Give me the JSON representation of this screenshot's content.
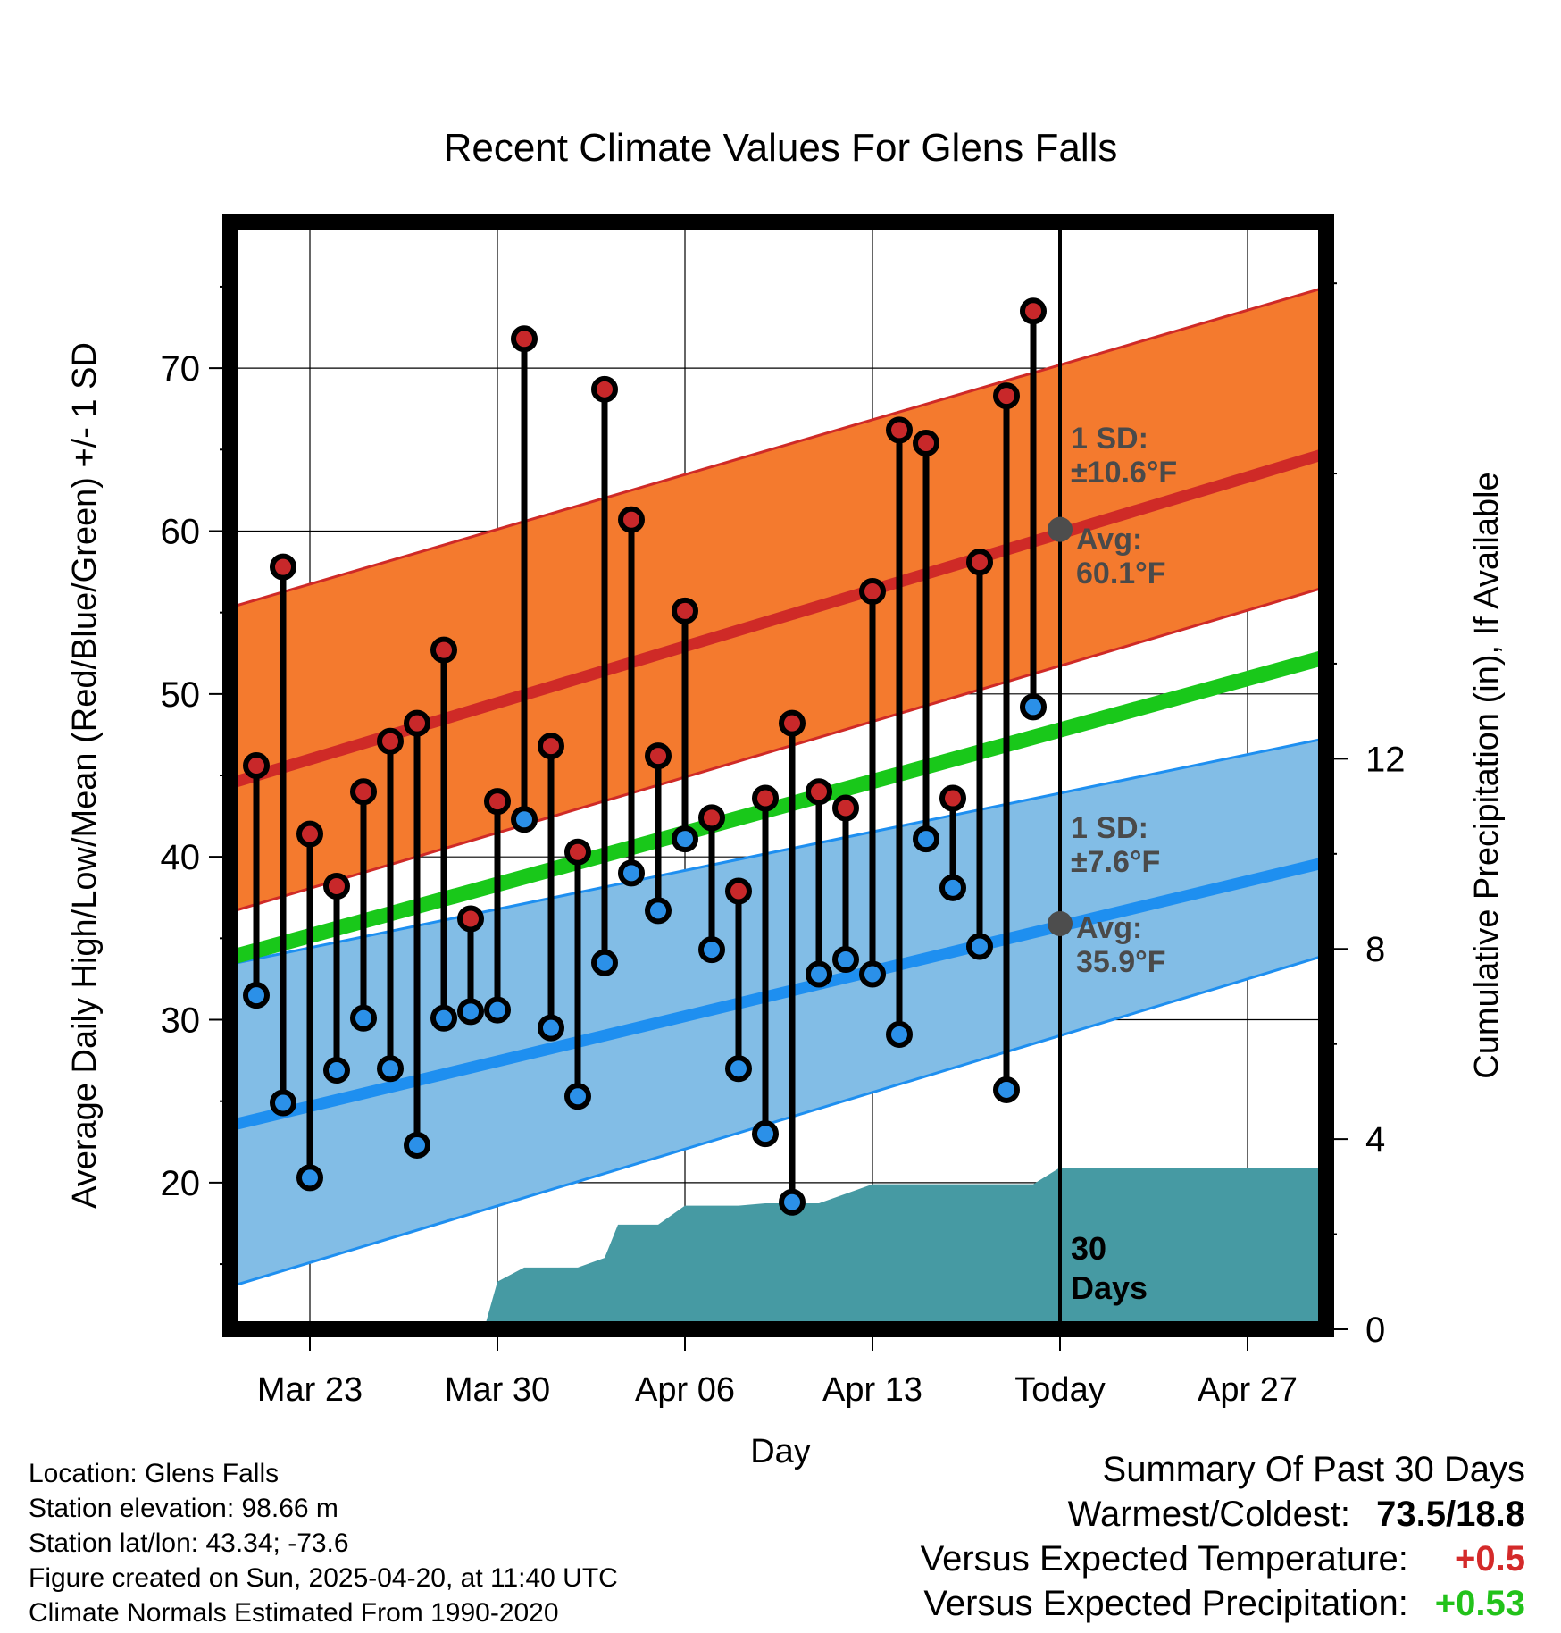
{
  "chart_data": {
    "type": "line",
    "title": "Recent Climate Values For Glens Falls",
    "xlabel": "Day",
    "ylabel": "Average Daily High/Low/Mean (Red/Blue/Green) +/- 1 SD",
    "y2label": "Cumulative Precipitation (in), If Available",
    "xticks": [
      "Mar 23",
      "Mar 30",
      "Apr 06",
      "Apr 13",
      "Today",
      "Apr 27"
    ],
    "xlim_days": [
      -31,
      10
    ],
    "ylim": [
      11,
      79
    ],
    "y_ticks": [
      20,
      30,
      40,
      50,
      60,
      70
    ],
    "y2lim": [
      0,
      23.3
    ],
    "y2_ticks": [
      0,
      4,
      8,
      12
    ],
    "today_marker": "30\nDays",
    "normal_high": {
      "x": [
        -31,
        10
      ],
      "mean": [
        44.5,
        64.8
      ],
      "upper": [
        55.3,
        75.0
      ],
      "lower": [
        36.6,
        56.6
      ],
      "sd_label": "1 SD:",
      "sd_value": "±10.6°F",
      "avg_label": "Avg:",
      "avg_value": "60.1°F",
      "today_avg": 60.1
    },
    "normal_low": {
      "x": [
        -31,
        10
      ],
      "mean": [
        23.5,
        39.7
      ],
      "upper": [
        33.4,
        47.3
      ],
      "lower": [
        13.6,
        34.0
      ],
      "sd_label": "1 SD:",
      "sd_value": "±7.6°F",
      "avg_label": "Avg:",
      "avg_value": "35.9°F",
      "today_avg": 35.9
    },
    "normal_mean": {
      "x": [
        -31,
        10
      ],
      "values": [
        33.8,
        52.3
      ]
    },
    "daily": {
      "day": [
        -30,
        -29,
        -28,
        -27,
        -26,
        -25,
        -24,
        -23,
        -22,
        -21,
        -20,
        -19,
        -18,
        -17,
        -16,
        -15,
        -14,
        -13,
        -12,
        -11,
        -10,
        -9,
        -8,
        -7,
        -6,
        -5,
        -4,
        -3,
        -2,
        -1
      ],
      "high": [
        45.6,
        57.8,
        41.4,
        38.2,
        44.0,
        47.1,
        48.2,
        52.7,
        36.2,
        43.4,
        71.8,
        46.8,
        40.3,
        68.7,
        60.7,
        46.2,
        55.1,
        42.4,
        37.9,
        43.6,
        48.2,
        44.0,
        43.0,
        56.3,
        66.2,
        65.4,
        43.6,
        58.1,
        68.3,
        73.5
      ],
      "low": [
        31.5,
        24.9,
        20.3,
        26.9,
        30.1,
        27.0,
        22.3,
        30.1,
        30.5,
        30.6,
        42.3,
        29.5,
        25.3,
        33.5,
        39.0,
        36.7,
        41.1,
        34.3,
        27.0,
        23.0,
        18.8,
        32.8,
        33.7,
        32.8,
        29.1,
        41.1,
        38.1,
        34.5,
        25.7,
        49.2
      ]
    },
    "precip": {
      "day": [
        -31,
        -27,
        -26,
        -25,
        -24,
        -23,
        -22,
        -21.5,
        -21,
        -20,
        -19,
        -18,
        -17,
        -16.5,
        -16,
        -15,
        -14,
        -13,
        -12,
        -11,
        -10,
        -9,
        -8,
        -7,
        -6,
        -5,
        -4,
        -3,
        -2,
        -1,
        0,
        10
      ],
      "cum": [
        0,
        0,
        0,
        0,
        0,
        0,
        0,
        0,
        1.0,
        1.3,
        1.3,
        1.3,
        1.5,
        2.2,
        2.2,
        2.2,
        2.6,
        2.6,
        2.6,
        2.65,
        2.65,
        2.65,
        2.85,
        3.05,
        3.05,
        3.05,
        3.05,
        3.05,
        3.05,
        3.05,
        3.4,
        3.4
      ]
    }
  },
  "footer": {
    "location": "Location: Glens Falls",
    "elevation": "Station elevation: 98.66 m",
    "latlon": "Station lat/lon: 43.34; -73.6",
    "created": "Figure created on Sun, 2025-04-20, at 11:40 UTC",
    "normals": "Climate Normals Estimated From 1990-2020"
  },
  "summary": {
    "title": "Summary Of Past 30 Days",
    "warmest_label": "Warmest/Coldest:",
    "warmest_value": "73.5/18.8",
    "temp_label": "Versus Expected Temperature:",
    "temp_value": "+0.5",
    "temp_color": "#d42a2a",
    "precip_label": "Versus Expected Precipitation:",
    "precip_value": "+0.53",
    "precip_color": "#22c21a"
  },
  "colors": {
    "high_band": "#f47a2e",
    "high_line": "#cf2a27",
    "low_band": "#82bde6",
    "low_line": "#1e8ff0",
    "mean_line": "#19c81a",
    "precip_fill": "#469aa3",
    "high_dot": "#c8282a",
    "low_dot": "#2b90e8",
    "avg_dot": "#4d4d4d",
    "annot_text": "#4a4a4a"
  }
}
